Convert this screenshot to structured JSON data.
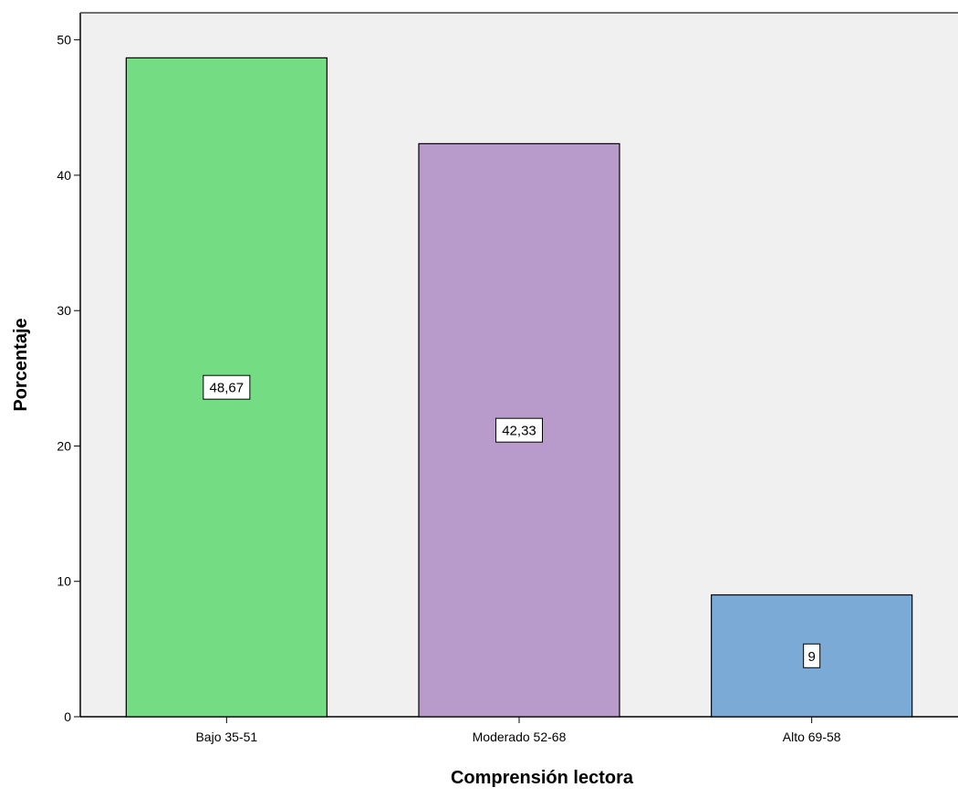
{
  "chart_data": {
    "type": "bar",
    "categories": [
      "Bajo  35-51",
      "Moderado  52-68",
      "Alto 69-58"
    ],
    "values": [
      48.67,
      42.33,
      9
    ],
    "data_labels": [
      "48,67",
      "42,33",
      "9"
    ],
    "colors": [
      "#74DD84",
      "#B89BCA",
      "#7BAAD6"
    ],
    "background_color": "#F0F0F0",
    "title": "",
    "xlabel": "Comprensión lectora",
    "ylabel": "Porcentaje",
    "ylim": [
      0,
      52
    ],
    "yticks": [
      0,
      10,
      20,
      30,
      40,
      50
    ],
    "grid": false,
    "legend": "none"
  }
}
